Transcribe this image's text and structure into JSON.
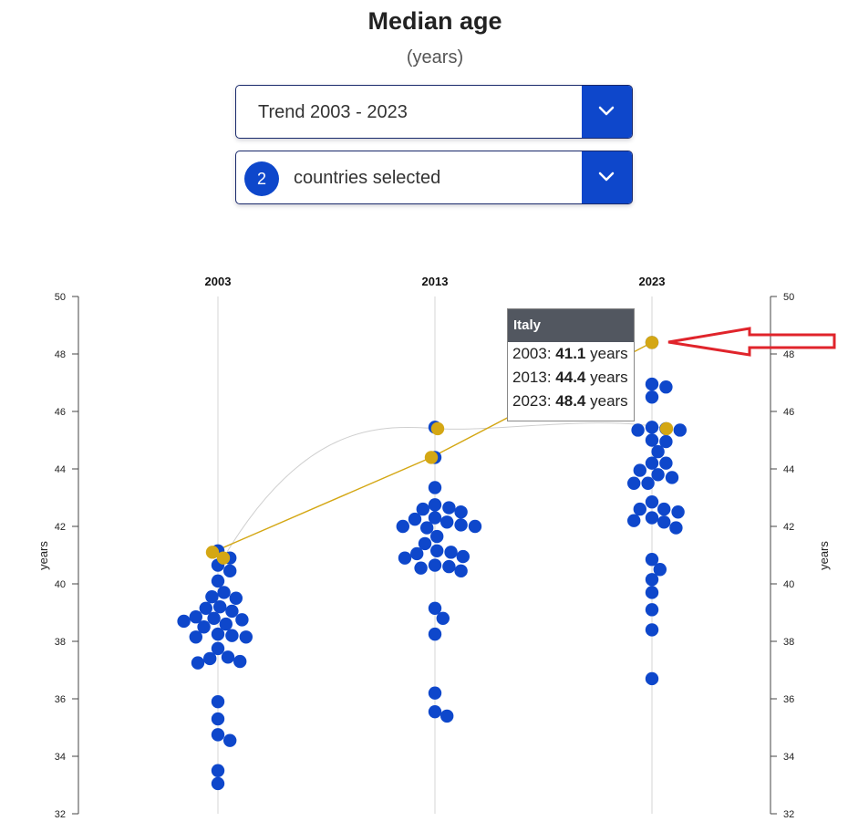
{
  "header": {
    "title": "Median age",
    "subtitle": "(years)"
  },
  "period_select": {
    "value": "Trend 2003 - 2023"
  },
  "country_select": {
    "count": "2",
    "label": "countries selected"
  },
  "colors": {
    "dot": "#0e47cb",
    "highlight": "#d4a714",
    "arrow": "#e0242b"
  },
  "chart_data": {
    "type": "scatter",
    "ylabel": "years",
    "ylim": [
      32,
      50
    ],
    "yticks": [
      "32",
      "34",
      "36",
      "38",
      "40",
      "42",
      "44",
      "46",
      "48",
      "50"
    ],
    "categories": [
      "2003",
      "2013",
      "2023"
    ],
    "series": [
      {
        "name": "2003",
        "values": [
          41.15,
          40.9,
          40.65,
          40.45,
          40.1,
          39.7,
          39.55,
          39.5,
          39.2,
          39.15,
          39.05,
          38.85,
          38.8,
          38.75,
          38.7,
          38.6,
          38.5,
          38.25,
          38.2,
          38.15,
          38.15,
          37.75,
          37.45,
          37.4,
          37.3,
          37.25,
          35.9,
          35.3,
          34.75,
          34.55,
          33.5,
          33.05
        ]
      },
      {
        "name": "2013",
        "values": [
          45.45,
          44.4,
          43.35,
          42.75,
          42.65,
          42.6,
          42.5,
          42.3,
          42.25,
          42.15,
          42.05,
          42.0,
          42.0,
          41.95,
          41.65,
          41.4,
          41.15,
          41.1,
          41.05,
          40.95,
          40.9,
          40.65,
          40.6,
          40.55,
          40.45,
          39.15,
          38.8,
          38.25,
          36.2,
          35.55,
          35.4
        ]
      },
      {
        "name": "2023",
        "values": [
          48.4,
          46.95,
          46.85,
          46.5,
          45.45,
          45.4,
          45.35,
          45.35,
          45.0,
          44.95,
          44.6,
          44.2,
          44.2,
          43.95,
          43.8,
          43.7,
          43.5,
          43.5,
          42.85,
          42.6,
          42.6,
          42.5,
          42.3,
          42.2,
          42.15,
          41.95,
          40.85,
          40.5,
          40.15,
          39.7,
          39.1,
          38.4,
          36.7
        ]
      }
    ],
    "highlighted": [
      {
        "name": "Italy",
        "values": [
          41.1,
          44.4,
          48.4
        ]
      },
      {
        "name": "",
        "values": [
          40.9,
          45.4,
          45.4
        ]
      }
    ]
  },
  "tooltip": {
    "country": "Italy",
    "unit": "years",
    "rows": [
      {
        "year": "2003",
        "value": "41.1"
      },
      {
        "year": "2013",
        "value": "44.4"
      },
      {
        "year": "2023",
        "value": "48.4"
      }
    ]
  }
}
